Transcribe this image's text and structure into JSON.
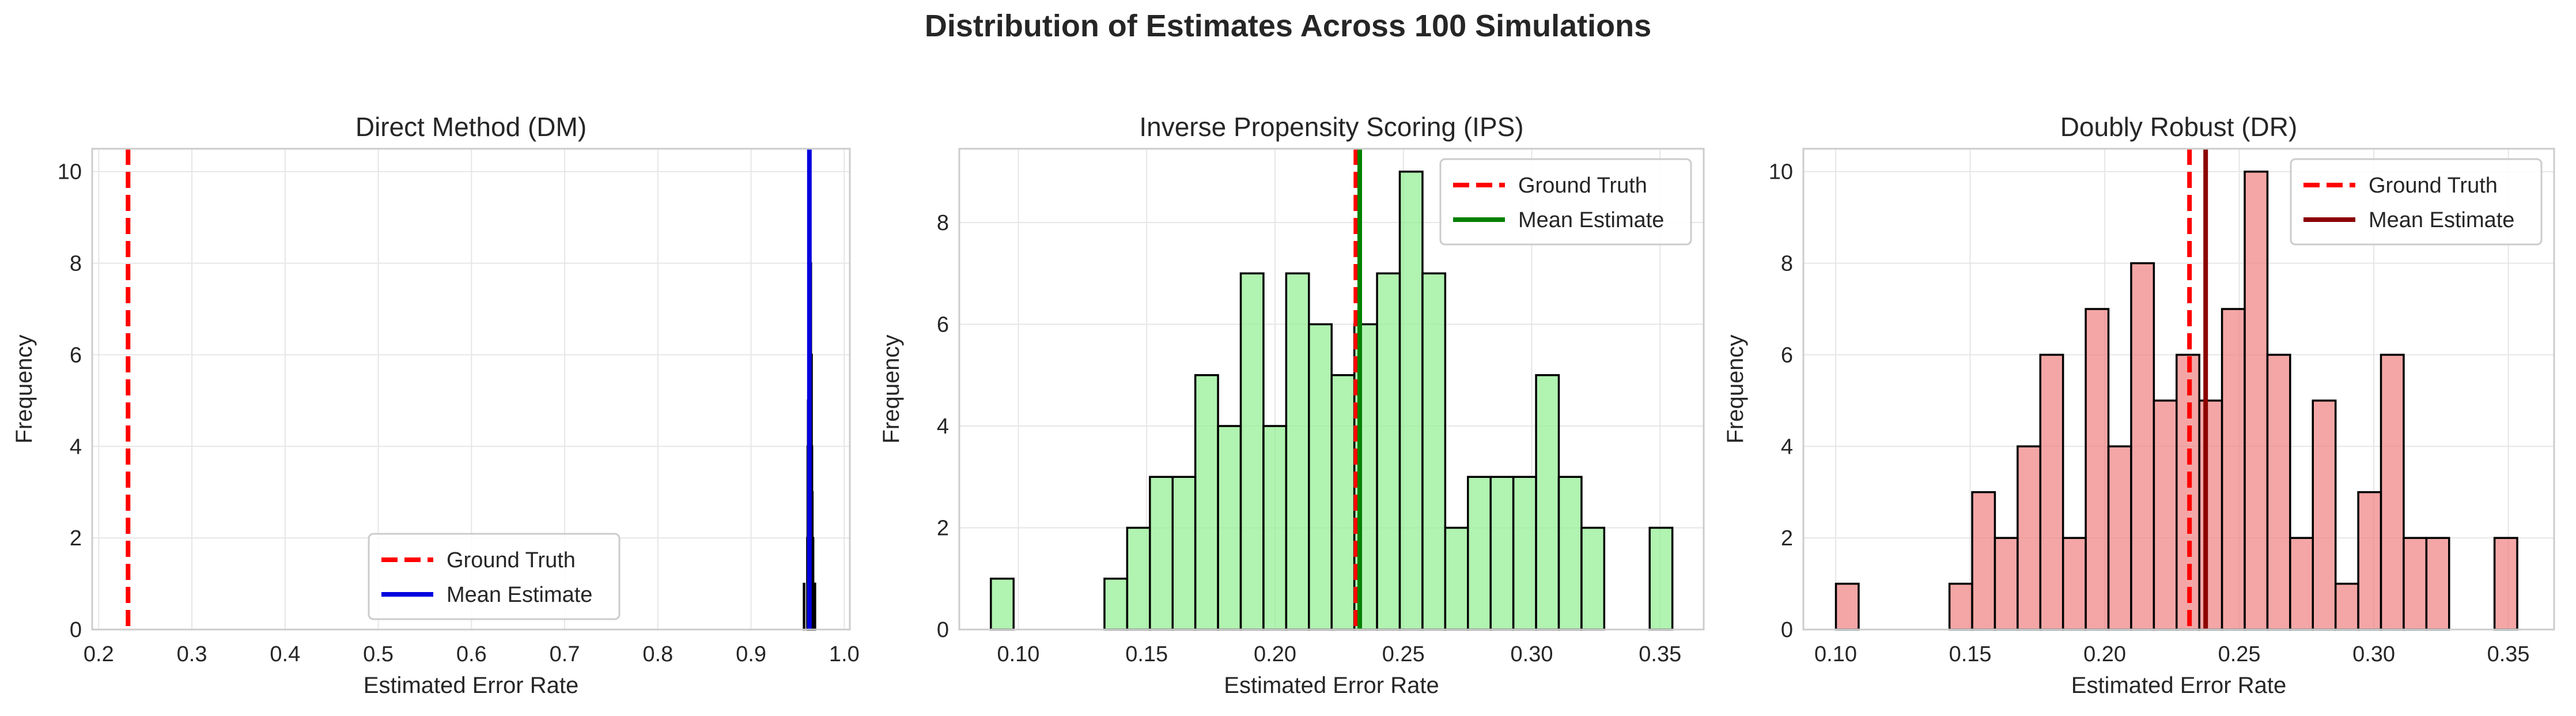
{
  "figure": {
    "suptitle": "Distribution of Estimates Across 100 Simulations"
  },
  "colors": {
    "ground_truth": "#ff0000",
    "dm_fill": "#1f2bd6",
    "dm_mean": "#0000dd",
    "ips_fill": "#90ee90",
    "ips_mean": "#008000",
    "dr_fill": "#f08080",
    "dr_mean": "#8b0000",
    "bar_edge": "#000000",
    "grid": "#e6e6e6",
    "spine": "#cccccc",
    "text": "#262626"
  },
  "chart_data": [
    {
      "type": "bar",
      "title": "Direct Method (DM)",
      "xlabel": "Estimated Error Rate",
      "ylabel": "Frequency",
      "xlim": [
        0.193,
        1.006
      ],
      "ylim": [
        0,
        10.5
      ],
      "xticks": [
        0.2,
        0.3,
        0.4,
        0.5,
        0.6,
        0.7,
        0.8,
        0.9,
        1.0
      ],
      "xtick_labels": [
        "0.2",
        "0.3",
        "0.4",
        "0.5",
        "0.6",
        "0.7",
        "0.8",
        "0.9",
        "1.0"
      ],
      "yticks": [
        0,
        2,
        4,
        6,
        8,
        10
      ],
      "ytick_labels": [
        "0",
        "2",
        "4",
        "6",
        "8",
        "10"
      ],
      "bins": {
        "start": 0.9566,
        "width": 0.0004,
        "counts": [
          1,
          0,
          0,
          0,
          0,
          0,
          0,
          0,
          0,
          2,
          4,
          5,
          4,
          7,
          10,
          10,
          9,
          7,
          8,
          6,
          6,
          4,
          3,
          2,
          2,
          1,
          1,
          1,
          1,
          1
        ]
      },
      "fill": "#1f2bd6",
      "ground_truth": 0.2315,
      "mean_estimate": 0.9626,
      "mean_color": "#0000dd",
      "legend": {
        "position": "lower center",
        "entries": [
          "Ground Truth",
          "Mean Estimate"
        ]
      }
    },
    {
      "type": "bar",
      "title": "Inverse Propensity Scoring (IPS)",
      "xlabel": "Estimated Error Rate",
      "ylabel": "Frequency",
      "xlim": [
        0.077,
        0.367
      ],
      "ylim": [
        0,
        9.45
      ],
      "xticks": [
        0.1,
        0.15,
        0.2,
        0.25,
        0.3,
        0.35
      ],
      "xtick_labels": [
        "0.10",
        "0.15",
        "0.20",
        "0.25",
        "0.30",
        "0.35"
      ],
      "yticks": [
        0,
        2,
        4,
        6,
        8
      ],
      "ytick_labels": [
        "0",
        "2",
        "4",
        "6",
        "8"
      ],
      "bins": {
        "start": 0.0893,
        "width": 0.00885,
        "counts": [
          1,
          0,
          0,
          0,
          0,
          1,
          2,
          3,
          3,
          5,
          4,
          7,
          4,
          7,
          6,
          5,
          6,
          7,
          9,
          7,
          2,
          3,
          3,
          3,
          5,
          3,
          2,
          0,
          0,
          2
        ]
      },
      "fill": "#90ee90",
      "ground_truth": 0.2315,
      "mean_estimate": 0.233,
      "mean_color": "#008000",
      "legend": {
        "position": "upper right",
        "entries": [
          "Ground Truth",
          "Mean Estimate"
        ]
      }
    },
    {
      "type": "bar",
      "title": "Doubly Robust (DR)",
      "xlabel": "Estimated Error Rate",
      "ylabel": "Frequency",
      "xlim": [
        0.088,
        0.367
      ],
      "ylim": [
        0,
        10.5
      ],
      "xticks": [
        0.1,
        0.15,
        0.2,
        0.25,
        0.3,
        0.35
      ],
      "xtick_labels": [
        "0.10",
        "0.15",
        "0.20",
        "0.25",
        "0.30",
        "0.35"
      ],
      "yticks": [
        0,
        2,
        4,
        6,
        8,
        10
      ],
      "ytick_labels": [
        "0",
        "2",
        "4",
        "6",
        "8",
        "10"
      ],
      "bins": {
        "start": 0.1001,
        "width": 0.00844,
        "counts": [
          1,
          0,
          0,
          0,
          0,
          1,
          3,
          2,
          4,
          6,
          2,
          7,
          4,
          8,
          5,
          6,
          5,
          7,
          10,
          6,
          2,
          5,
          1,
          3,
          6,
          2,
          2,
          0,
          0,
          2
        ]
      },
      "fill": "#f08080",
      "ground_truth": 0.2315,
      "mean_estimate": 0.2375,
      "mean_color": "#8b0000",
      "legend": {
        "position": "upper right",
        "entries": [
          "Ground Truth",
          "Mean Estimate"
        ]
      }
    }
  ]
}
